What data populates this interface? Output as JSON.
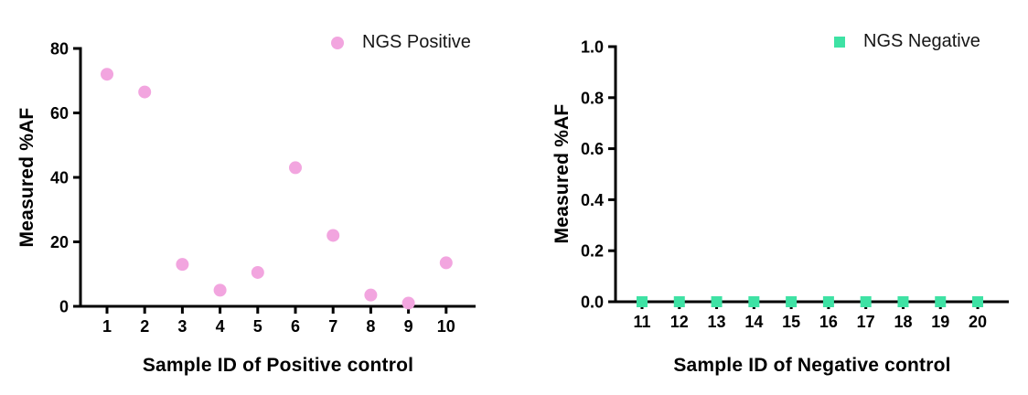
{
  "background_color": "#FFFFFF",
  "axis_color": "#000000",
  "chart_data": [
    {
      "type": "scatter",
      "title": "",
      "xlabel": "Sample ID of Positive control",
      "ylabel": "Measured %AF",
      "legend": {
        "label": "NGS Positive",
        "position": "top-right"
      },
      "marker": {
        "shape": "circle",
        "color": "#F2A5DF",
        "size": 14
      },
      "categories": [
        "1",
        "2",
        "3",
        "4",
        "5",
        "6",
        "7",
        "8",
        "9",
        "10"
      ],
      "values": [
        72,
        66.5,
        13,
        5,
        10.5,
        43,
        22,
        3.5,
        1,
        13.5
      ],
      "ylim": [
        0,
        80
      ],
      "yticks": [
        {
          "value": 0,
          "label": "0"
        },
        {
          "value": 20,
          "label": "20"
        },
        {
          "value": 40,
          "label": "40"
        },
        {
          "value": 60,
          "label": "60"
        },
        {
          "value": 80,
          "label": "80"
        }
      ],
      "grid": false
    },
    {
      "type": "scatter",
      "title": "",
      "xlabel": "Sample ID of Negative control",
      "ylabel": "Measured %AF",
      "legend": {
        "label": "NGS Negative",
        "position": "top-right"
      },
      "marker": {
        "shape": "square",
        "color": "#3EE2A4",
        "size": 12
      },
      "categories": [
        "11",
        "12",
        "13",
        "14",
        "15",
        "16",
        "17",
        "18",
        "19",
        "20"
      ],
      "values": [
        0,
        0,
        0,
        0,
        0,
        0,
        0,
        0,
        0,
        0
      ],
      "ylim": [
        0,
        1.0
      ],
      "yticks": [
        {
          "value": 0.0,
          "label": "0.0"
        },
        {
          "value": 0.2,
          "label": "0.2"
        },
        {
          "value": 0.4,
          "label": "0.4"
        },
        {
          "value": 0.6,
          "label": "0.6"
        },
        {
          "value": 0.8,
          "label": "0.8"
        },
        {
          "value": 1.0,
          "label": "1.0"
        }
      ],
      "grid": false
    }
  ]
}
